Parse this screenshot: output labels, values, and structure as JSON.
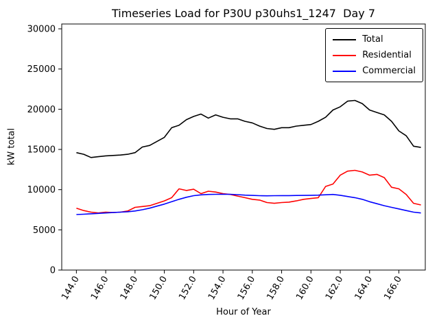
{
  "figure": {
    "title": "Timeseries Load for P30U p30uhs1_1247  Day 7",
    "xlabel": "Hour of Year",
    "ylabel": "kW total"
  },
  "chart_data": {
    "type": "line",
    "title": "Timeseries Load for P30U p30uhs1_1247  Day 7",
    "xlabel": "Hour of Year",
    "ylabel": "kW total",
    "grid": false,
    "legend_position": "upper right",
    "xlim": [
      143.0,
      167.8
    ],
    "ylim": [
      0,
      30600
    ],
    "yticks": [
      0,
      5000,
      10000,
      15000,
      20000,
      25000,
      30000
    ],
    "xticks": [
      144.0,
      146.0,
      148.0,
      150.0,
      152.0,
      154.0,
      156.0,
      158.0,
      160.0,
      162.0,
      164.0,
      166.0
    ],
    "xtick_rotation_deg": 60,
    "x": [
      144.0,
      144.5,
      145.0,
      145.5,
      146.0,
      146.5,
      147.0,
      147.5,
      148.0,
      148.5,
      149.0,
      149.5,
      150.0,
      150.5,
      151.0,
      151.5,
      152.0,
      152.5,
      153.0,
      153.5,
      154.0,
      154.5,
      155.0,
      155.5,
      156.0,
      156.5,
      157.0,
      157.5,
      158.0,
      158.5,
      159.0,
      159.5,
      160.0,
      160.5,
      161.0,
      161.5,
      162.0,
      162.5,
      163.0,
      163.5,
      164.0,
      164.5,
      165.0,
      165.5,
      166.0,
      166.5,
      167.0,
      167.5
    ],
    "series": [
      {
        "name": "Total",
        "color": "#000000",
        "values": [
          14600,
          14400,
          14000,
          14100,
          14200,
          14250,
          14300,
          14400,
          14600,
          15300,
          15500,
          16000,
          16500,
          17700,
          18000,
          18700,
          19100,
          19400,
          18900,
          19300,
          19000,
          18800,
          18800,
          18500,
          18300,
          17900,
          17600,
          17500,
          17700,
          17700,
          17900,
          18000,
          18100,
          18500,
          19000,
          19900,
          20300,
          21000,
          21100,
          20700,
          19900,
          19600,
          19300,
          18500,
          17300,
          16700,
          15400,
          15250
        ]
      },
      {
        "name": "Residential",
        "color": "#ff0000",
        "values": [
          7700,
          7400,
          7200,
          7100,
          7200,
          7150,
          7200,
          7350,
          7800,
          7900,
          8000,
          8300,
          8600,
          9000,
          10100,
          9900,
          10050,
          9500,
          9800,
          9700,
          9500,
          9400,
          9200,
          9000,
          8800,
          8700,
          8400,
          8300,
          8400,
          8450,
          8600,
          8800,
          8900,
          9000,
          10400,
          10700,
          11800,
          12300,
          12400,
          12200,
          11800,
          11900,
          11500,
          10300,
          10100,
          9400,
          8300,
          8100
        ]
      },
      {
        "name": "Commercial",
        "color": "#0000ff",
        "values": [
          6900,
          6950,
          7000,
          7050,
          7100,
          7150,
          7200,
          7250,
          7350,
          7500,
          7700,
          7950,
          8200,
          8500,
          8800,
          9050,
          9250,
          9350,
          9400,
          9420,
          9430,
          9420,
          9380,
          9320,
          9280,
          9250,
          9230,
          9250,
          9260,
          9260,
          9270,
          9280,
          9300,
          9320,
          9360,
          9400,
          9300,
          9150,
          9000,
          8800,
          8500,
          8250,
          8000,
          7800,
          7600,
          7400,
          7200,
          7100
        ]
      }
    ]
  }
}
